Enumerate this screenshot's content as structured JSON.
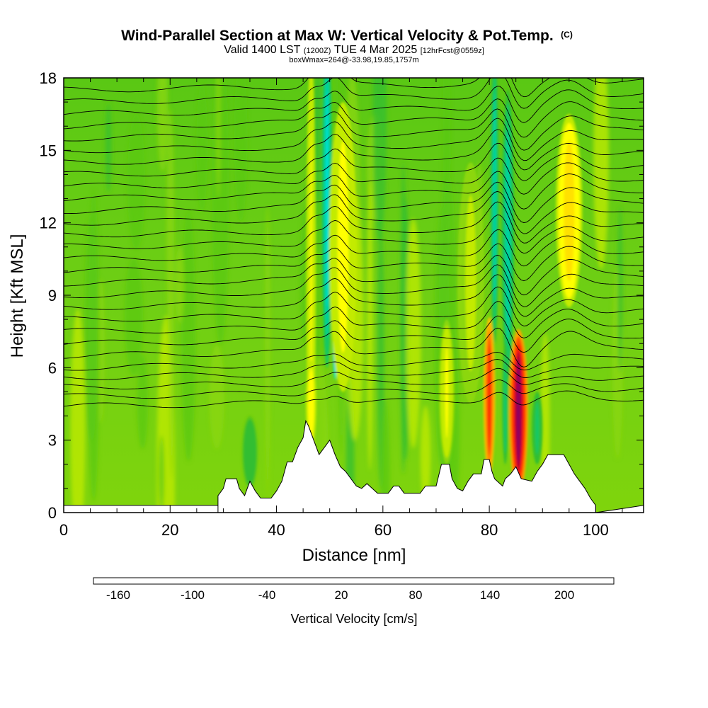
{
  "chart_data": {
    "type": "heatmap",
    "title": "Wind-Parallel Section at Max W: Vertical Velocity & Pot.Temp.",
    "copyright": "(C)",
    "subtitle": {
      "valid": "Valid 1400 LST",
      "utc": "(1200Z)",
      "date": "TUE 4 Mar 2025",
      "fcst": "[12hrFcst@0559z]"
    },
    "box_info": "boxWmax=264@-33.98,19.85,1757m",
    "xlabel": "Distance [nm]",
    "ylabel": "Height [Kft MSL]",
    "xlim": [
      0,
      109
    ],
    "ylim": [
      0,
      18
    ],
    "x_ticks": [
      "0",
      "20",
      "40",
      "60",
      "80",
      "100"
    ],
    "y_ticks": [
      "0",
      "3",
      "6",
      "9",
      "12",
      "15",
      "18"
    ],
    "colorbar": {
      "title": "Vertical Velocity [cm/s]",
      "labels": [
        "-160",
        "-100",
        "-40",
        "20",
        "80",
        "140",
        "200"
      ],
      "levels": [
        -180,
        -160,
        -140,
        -120,
        -100,
        -80,
        -60,
        -40,
        -20,
        0,
        20,
        40,
        60,
        80,
        100,
        120,
        140,
        160,
        180,
        200,
        220,
        240
      ],
      "colors": [
        "#0000ff",
        "#0050ff",
        "#0096ff",
        "#00c8ff",
        "#00e6dc",
        "#00d2a0",
        "#14c864",
        "#32be32",
        "#5ac814",
        "#8cd70a",
        "#c3eb00",
        "#ffff00",
        "#ffe100",
        "#ffc300",
        "#ffa500",
        "#ff7d00",
        "#ff5000",
        "#ff1e00",
        "#dc0000",
        "#b40032",
        "#8c0064"
      ]
    },
    "terrain": [
      [
        29,
        0
      ],
      [
        29,
        0.7
      ],
      [
        30,
        1.0
      ],
      [
        30.5,
        1.4
      ],
      [
        32.5,
        1.4
      ],
      [
        33,
        1.0
      ],
      [
        34,
        0.7
      ],
      [
        34.5,
        1.0
      ],
      [
        35,
        1.3
      ],
      [
        36,
        0.9
      ],
      [
        37,
        0.6
      ],
      [
        39,
        0.6
      ],
      [
        40,
        0.9
      ],
      [
        41,
        1.3
      ],
      [
        42,
        2.1
      ],
      [
        43,
        2.1
      ],
      [
        44,
        2.7
      ],
      [
        45,
        3.1
      ],
      [
        45.5,
        3.8
      ],
      [
        46,
        3.6
      ],
      [
        47,
        3.0
      ],
      [
        48,
        2.4
      ],
      [
        49,
        2.7
      ],
      [
        50,
        3.0
      ],
      [
        51,
        2.4
      ],
      [
        52,
        1.9
      ],
      [
        53,
        1.7
      ],
      [
        54,
        1.4
      ],
      [
        55,
        1.1
      ],
      [
        56,
        1.0
      ],
      [
        57,
        1.2
      ],
      [
        58,
        1.0
      ],
      [
        59,
        0.8
      ],
      [
        61,
        0.8
      ],
      [
        62,
        1.1
      ],
      [
        63,
        1.1
      ],
      [
        64,
        0.8
      ],
      [
        67,
        0.8
      ],
      [
        68,
        1.1
      ],
      [
        70,
        1.1
      ],
      [
        71,
        2.0
      ],
      [
        72.5,
        2.0
      ],
      [
        73,
        1.4
      ],
      [
        74,
        1.0
      ],
      [
        75,
        0.9
      ],
      [
        76,
        1.3
      ],
      [
        77,
        1.6
      ],
      [
        78.5,
        1.6
      ],
      [
        79,
        2.2
      ],
      [
        80,
        2.2
      ],
      [
        80.5,
        1.7
      ],
      [
        81,
        1.4
      ],
      [
        82,
        1.2
      ],
      [
        82.5,
        1.1
      ],
      [
        83,
        1.4
      ],
      [
        84,
        1.6
      ],
      [
        85,
        1.9
      ],
      [
        86,
        1.4
      ],
      [
        88,
        1.3
      ],
      [
        89,
        1.7
      ],
      [
        90,
        2.0
      ],
      [
        91,
        2.4
      ],
      [
        94,
        2.4
      ],
      [
        95,
        2.0
      ],
      [
        96,
        1.6
      ],
      [
        97,
        1.3
      ],
      [
        98,
        1.0
      ],
      [
        99,
        0.6
      ],
      [
        100,
        0.3
      ],
      [
        100,
        0
      ]
    ],
    "updrafts": [
      {
        "x": 85.5,
        "y": 4.2,
        "w": 1.8,
        "h": 3.4,
        "value": 230
      },
      {
        "x": 80.0,
        "y": 4.8,
        "w": 1.1,
        "h": 3.3,
        "value": 170
      },
      {
        "x": 52.5,
        "y": 11.0,
        "w": 2.6,
        "h": 6.0,
        "value": 50
      },
      {
        "x": 46.5,
        "y": 10.0,
        "w": 0.9,
        "h": 9.0,
        "value": 45
      },
      {
        "x": 95.0,
        "y": 12.5,
        "w": 2.5,
        "h": 4.0,
        "value": 70
      },
      {
        "x": 72.0,
        "y": 5.0,
        "w": 1.5,
        "h": 3.0,
        "value": 40
      },
      {
        "x": 46.5,
        "y": 4.5,
        "w": 1.0,
        "h": 1.8,
        "value": 55
      },
      {
        "x": 76.5,
        "y": 9.5,
        "w": 2.5,
        "h": 5.0,
        "value": 25
      }
    ],
    "downdrafts": [
      {
        "x": 51.0,
        "y": 9.5,
        "w": 0.6,
        "h": 4.0,
        "value": -170
      },
      {
        "x": 49.5,
        "y": 13.0,
        "w": 1.0,
        "h": 7.0,
        "value": -90
      },
      {
        "x": 83.5,
        "y": 11.5,
        "w": 1.2,
        "h": 6.0,
        "value": -80
      },
      {
        "x": 81.0,
        "y": 13.0,
        "w": 0.8,
        "h": 6.0,
        "value": -70
      },
      {
        "x": 83.0,
        "y": 4.5,
        "w": 0.6,
        "h": 2.5,
        "value": -60
      },
      {
        "x": 89.0,
        "y": 3.5,
        "w": 1.0,
        "h": 1.5,
        "value": -50
      },
      {
        "x": 35.0,
        "y": 2.5,
        "w": 1.5,
        "h": 1.5,
        "value": -35
      }
    ],
    "theta_contours": [
      4.4,
      4.8,
      5.2,
      5.6,
      6.0,
      6.5,
      7.0,
      7.5,
      8.0,
      8.5,
      9.0,
      9.5,
      10.0,
      10.5,
      11.0,
      11.5,
      12.0,
      12.5,
      13.0,
      13.5,
      14.0,
      14.5,
      15.0,
      15.5,
      16.0,
      16.5,
      17.0,
      17.5
    ]
  }
}
